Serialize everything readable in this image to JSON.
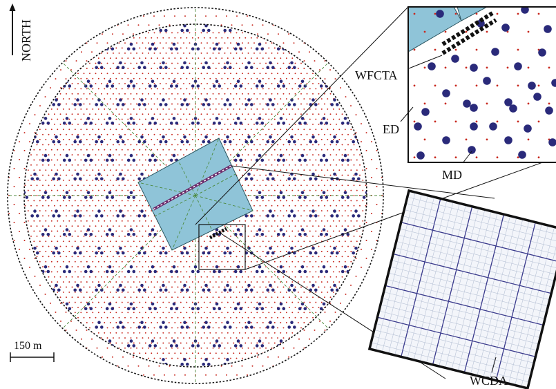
{
  "labels": {
    "north": "NORTH",
    "scale": "150 m",
    "wfcta": "WFCTA",
    "ed": "ED",
    "md": "MD",
    "wcda": "WCDA"
  },
  "colors": {
    "ed_dot": "#c8281e",
    "md_dot": "#2a2a7a",
    "pond": "#8fc4d8",
    "pond_stroke": "#2b5560",
    "guide_line": "#4c8a3c",
    "grid_major": "#3a3a8c",
    "grid_minor": "#b9c3d6",
    "black": "#111111"
  }
}
